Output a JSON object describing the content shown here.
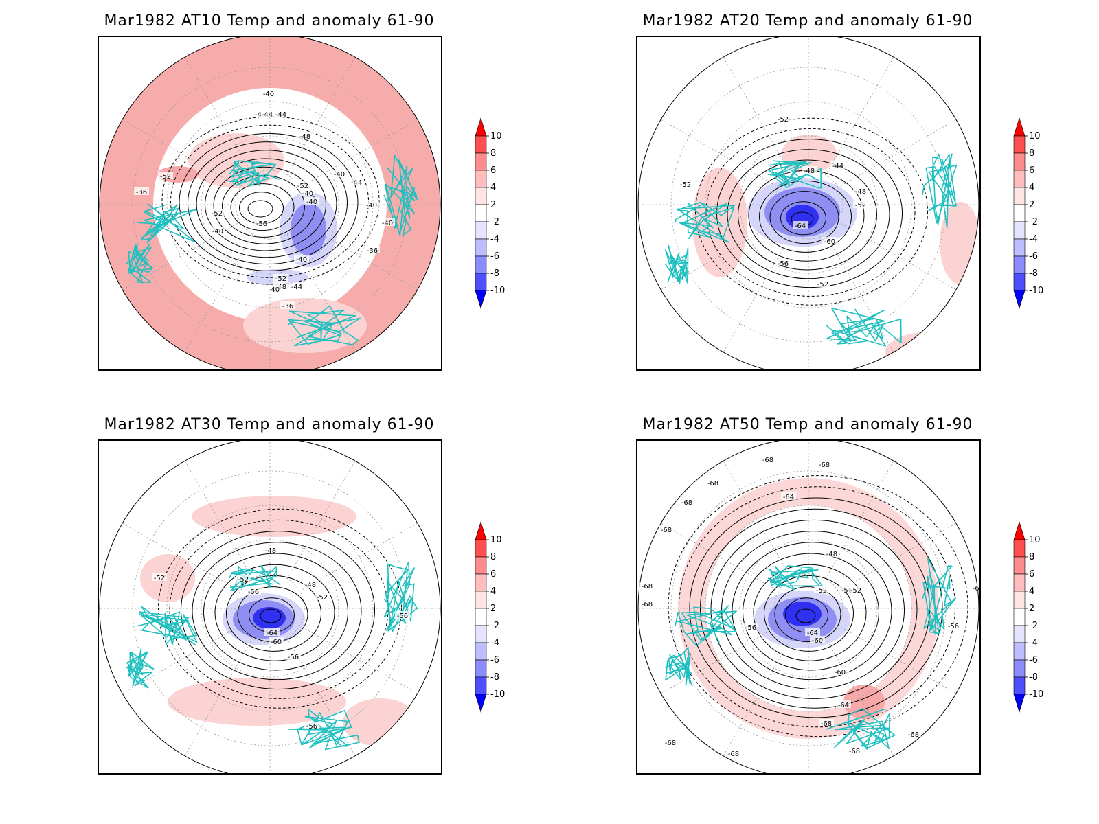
{
  "panels": [
    {
      "title": "Mar1982 AT10 Temp and anomaly 61-90",
      "contour_labels": [
        "-40",
        "-4-44",
        "-44",
        "-48",
        "-52",
        "-36",
        "-52",
        "-40",
        "-40",
        "-40",
        "-44",
        "-56",
        "-52",
        "-40",
        "-40",
        "-40",
        "-36",
        "-40",
        "-52",
        "-48",
        "-44",
        "-40",
        "-36"
      ]
    },
    {
      "title": "Mar1982 AT20 Temp and anomaly 61-90",
      "contour_labels": [
        "-52",
        "-52",
        "-48",
        "-44",
        "-48",
        "-52",
        "-64",
        "-60",
        "-56",
        "-52"
      ]
    },
    {
      "title": "Mar1982 AT30 Temp and anomaly 61-90",
      "contour_labels": [
        "-48",
        "-52",
        "-52",
        "-56",
        "-48",
        "-52",
        "-64",
        "-60",
        "-56",
        "-56",
        "-56"
      ]
    },
    {
      "title": "Mar1982 AT50 Temp and anomaly 61-90",
      "contour_labels": [
        "-68",
        "-68",
        "-68",
        "-68",
        "-64",
        "-68",
        "-48",
        "-52",
        "-56",
        "-52",
        "-56",
        "-68",
        "-64",
        "-60",
        "-68",
        "-68",
        "-56",
        "-60",
        "-64",
        "-68",
        "-68",
        "-68",
        "-68",
        "-68"
      ]
    }
  ],
  "colorbar": {
    "labels": [
      "10",
      "8",
      "6",
      "4",
      "2",
      "-2",
      "-4",
      "-6",
      "-8",
      "-10"
    ],
    "colors": [
      "#ff0000",
      "#ff4f4f",
      "#ff8c8c",
      "#ffbdbd",
      "#ffe4e4",
      "#ffffff",
      "#e4e4ff",
      "#bdbdff",
      "#8c8cff",
      "#4f4fff",
      "#0000ff"
    ]
  },
  "colors": {
    "coastline": "#20c0c0",
    "contour": "#000000",
    "warm_light": "#fbd3d3",
    "warm_mid": "#f7a8a8",
    "cold_light": "#d6d6fb",
    "cold_mid": "#8f8ff3",
    "cold_deep": "#3030f0"
  }
}
